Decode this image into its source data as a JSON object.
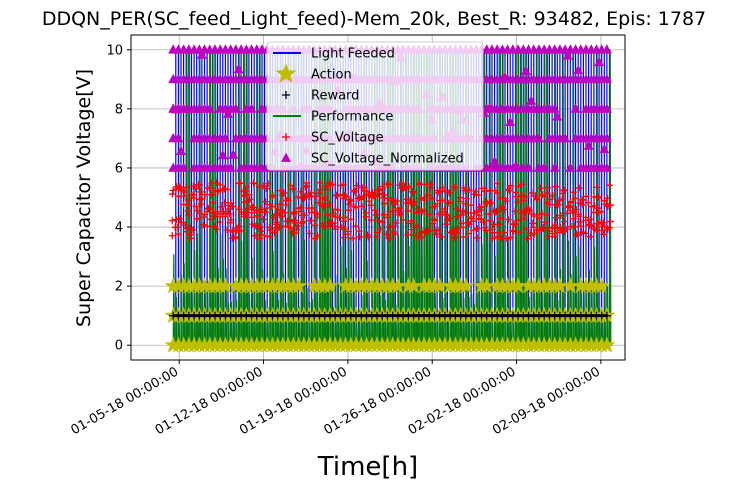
{
  "chart_data": {
    "type": "line",
    "title": "DDQN_PER(SC_feed_Light_feed)-Mem_20k, Best_R: 93482, Epis: 1787",
    "xlabel": "Time[h]",
    "ylabel": "Super Capacitor Voltage[V]",
    "x_start": "01-01-18 00:00:00",
    "x_end": "02-11-18 00:00:00",
    "x_ticks": [
      "01-05-18 00:00:00",
      "01-12-18 00:00:00",
      "01-19-18 00:00:00",
      "01-26-18 00:00:00",
      "02-02-18 00:00:00",
      "02-09-18 00:00:00"
    ],
    "ylim": [
      -0.5,
      10.5
    ],
    "y_ticks": [
      "0",
      "2",
      "4",
      "6",
      "8",
      "10"
    ],
    "grid": true,
    "legend_position": "upper center",
    "series": [
      {
        "name": "Light Feeded",
        "color": "#0000ff",
        "style": "line",
        "oscillates_between": [
          0,
          10
        ]
      },
      {
        "name": "Action",
        "color": "#bfbf00",
        "style": "star",
        "levels": [
          0,
          1,
          2
        ]
      },
      {
        "name": "Reward",
        "color": "#000000",
        "style": "plus",
        "levels": [
          1
        ]
      },
      {
        "name": "Performance",
        "color": "#008000",
        "style": "line",
        "oscillates_between": [
          0,
          10
        ]
      },
      {
        "name": "SC_Voltage",
        "color": "#ff0000",
        "style": "plus",
        "range": [
          3.6,
          5.5
        ]
      },
      {
        "name": "SC_Voltage_Normalized",
        "color": "#bf00bf",
        "style": "triangle",
        "levels": [
          6,
          7,
          8,
          9,
          10
        ]
      }
    ]
  }
}
